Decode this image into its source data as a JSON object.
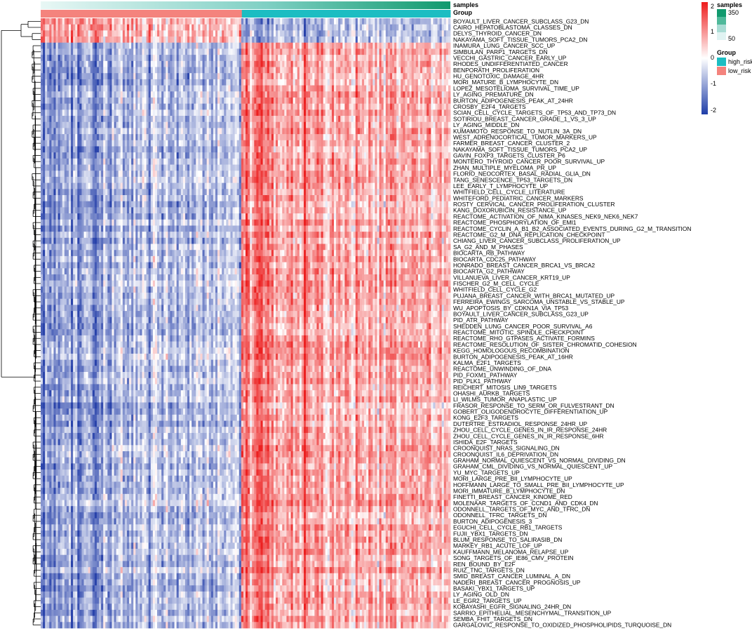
{
  "chart_data": {
    "type": "heatmap",
    "annotation_tracks": [
      "samples",
      "Group"
    ],
    "rows": [
      "BOYAULT_LIVER_CANCER_SUBCLASS_G23_DN",
      "CAIRO_HEPATOBLASTOMA_CLASSES_DN",
      "DELYS_THYROID_CANCER_DN",
      "NAKAYAMA_SOFT_TISSUE_TUMORS_PCA2_DN",
      "INAMURA_LUNG_CANCER_SCC_UP",
      "SIMBULAN_PARP1_TARGETS_DN",
      "VECCHI_GASTRIC_CANCER_EARLY_UP",
      "RHODES_UNDIFFERENTIATED_CANCER",
      "BENPORATH_PROLIFERATION",
      "HU_GENOTOXIC_DAMAGE_4HR",
      "MORI_MATURE_B_LYMPHOCYTE_DN",
      "LOPEZ_MESOTELIOMA_SURVIVAL_TIME_UP",
      "LY_AGING_PREMATURE_DN",
      "BURTON_ADIPOGENESIS_PEAK_AT_24HR",
      "CROSBY_E2F4_TARGETS",
      "SCIAN_CELL_CYCLE_TARGETS_OF_TP53_AND_TP73_DN",
      "SOTIRIOU_BREAST_CANCER_GRADE_1_VS_3_UP",
      "LY_AGING_MIDDLE_DN",
      "KUMAMOTO_RESPONSE_TO_NUTLIN_3A_DN",
      "WEST_ADRENOCORTICAL_TUMOR_MARKERS_UP",
      "FARMER_BREAST_CANCER_CLUSTER_2",
      "NAKAYAMA_SOFT_TISSUE_TUMORS_PCA2_UP",
      "GAVIN_FOXP3_TARGETS_CLUSTER_P6",
      "MONTERO_THYROID_CANCER_POOR_SURVIVAL_UP",
      "ZHAN_MULTIPLE_MYELOMA_PR_UP",
      "FLORIO_NEOCORTEX_BASAL_RADIAL_GLIA_DN",
      "TANG_SENESCENCE_TP53_TARGETS_DN",
      "LEE_EARLY_T_LYMPHOCYTE_UP",
      "WHITFIELD_CELL_CYCLE_LITERATURE",
      "WHITEFORD_PEDIATRIC_CANCER_MARKERS",
      "ROSTY_CERVICAL_CANCER_PROLIFERATION_CLUSTER",
      "KANG_DOXORUBICIN_RESISTANCE_UP",
      "REACTOME_ACTIVATION_OF_NIMA_KINASES_NEK9_NEK6_NEK7",
      "REACTOME_PHOSPHORYLATION_OF_EMI1",
      "REACTOME_CYCLIN_A_B1_B2_ASSOCIATED_EVENTS_DURING_G2_M_TRANSITION",
      "REACTOME_G2_M_DNA_REPLICATION_CHECKPOINT",
      "CHIANG_LIVER_CANCER_SUBCLASS_PROLIFERATION_UP",
      "SA_G2_AND_M_PHASES",
      "BIOCARTA_RB_PATHWAY",
      "BIOCARTA_CDC25_PATHWAY",
      "HONRADO_BREAST_CANCER_BRCA1_VS_BRCA2",
      "BIOCARTA_G2_PATHWAY",
      "VILLANUEVA_LIVER_CANCER_KRT19_UP",
      "FISCHER_G2_M_CELL_CYCLE",
      "WHITFIELD_CELL_CYCLE_G2",
      "PUJANA_BREAST_CANCER_WITH_BRCA1_MUTATED_UP",
      "FERREIRA_EWINGS_SARCOMA_UNSTABLE_VS_STABLE_UP",
      "WU_APOPTOSIS_BY_CDKN1A_VIA_TP53",
      "BOYAULT_LIVER_CANCER_SUBCLASS_G23_UP",
      "PID_ATR_PATHWAY",
      "SHEDDEN_LUNG_CANCER_POOR_SURVIVAL_A6",
      "REACTOME_MITOTIC_SPINDLE_CHECKPOINT",
      "REACTOME_RHO_GTPASES_ACTIVATE_FORMINS",
      "REACTOME_RESOLUTION_OF_SISTER_CHROMATID_COHESION",
      "KEGG_HOMOLOGOUS_RECOMBINATION",
      "BURTON_ADIPOGENESIS_PEAK_AT_16HR",
      "KALMA_E2F1_TARGETS",
      "REACTOME_UNWINDING_OF_DNA",
      "PID_FOXM1_PATHWAY",
      "PID_PLK1_PATHWAY",
      "REICHERT_MITOSIS_LIN9_TARGETS",
      "OHASHI_AURKB_TARGETS",
      "LI_WILMS_TUMOR_ANAPLASTIC_UP",
      "FRASOR_RESPONSE_TO_SERM_OR_FULVESTRANT_DN",
      "GOBERT_OLIGODENDROCYTE_DIFFERENTIATION_UP",
      "KONG_E2F3_TARGETS",
      "DUTERTRE_ESTRADIOL_RESPONSE_24HR_UP",
      "ZHOU_CELL_CYCLE_GENES_IN_IR_RESPONSE_24HR",
      "ZHOU_CELL_CYCLE_GENES_IN_IR_RESPONSE_6HR",
      "ISHIDA_E2F_TARGETS",
      "CROONQUIST_NRAS_SIGNALING_DN",
      "CROONQUIST_IL6_DEPRIVATION_DN",
      "GRAHAM_NORMAL_QUIESCENT_VS_NORMAL_DIVIDING_DN",
      "GRAHAM_CML_DIVIDING_VS_NORMAL_QUIESCENT_UP",
      "YU_MYC_TARGETS_UP",
      "MORI_LARGE_PRE_BII_LYMPHOCYTE_UP",
      "HOFFMANN_LARGE_TO_SMALL_PRE_BII_LYMPHOCYTE_UP",
      "MORI_IMMATURE_B_LYMPHOCYTE_DN",
      "FINETTI_BREAST_CANCER_KINOME_RED",
      "MOLENAAR_TARGETS_OF_CCND1_AND_CDK4_DN",
      "ODONNELL_TARGETS_OF_MYC_AND_TFRC_DN",
      "ODONNELL_TFRC_TARGETS_DN",
      "BURTON_ADIPOGENESIS_3",
      "EGUCHI_CELL_CYCLE_RB1_TARGETS",
      "FUJII_YBX1_TARGETS_DN",
      "BLUM_RESPONSE_TO_SALIRASIB_DN",
      "MARKEY_RB1_ACUTE_LOF_UP",
      "KAUFFMANN_MELANOMA_RELAPSE_UP",
      "SONG_TARGETS_OF_IE86_CMV_PROTEIN",
      "REN_BOUND_BY_E2F",
      "RUIZ_TNC_TARGETS_DN",
      "SMID_BREAST_CANCER_LUMINAL_A_DN",
      "NADERI_BREAST_CANCER_PROGNOSIS_UP",
      "BASAKI_YBX1_TARGETS_UP",
      "LY_AGING_OLD_DN",
      "LE_EGR2_TARGETS_UP",
      "KOBAYASHI_EGFR_SIGNALING_24HR_DN",
      "SARRIO_EPITHELIAL_MESENCHYMAL_TRANSITION_UP",
      "SEMBA_FHIT_TARGETS_DN",
      "GARGALOVIC_RESPONSE_TO_OXIDIZED_PHOSPHOLIPIDS_TURQUOISE_DN"
    ],
    "top_block_rows": 4,
    "sample_groups": [
      {
        "name": "low_risk",
        "fraction": 0.491,
        "color": "#f4837d"
      },
      {
        "name": "high_risk",
        "fraction": 0.509,
        "color": "#1cbdc2"
      }
    ],
    "samples_range": [
      1,
      370
    ],
    "color_scale": {
      "min": -2,
      "max": 2,
      "ticks": [
        "2",
        "1",
        "0",
        "-1",
        "-2"
      ],
      "low_color": "#2f4cb1",
      "mid_color": "#ffffff",
      "high_color": "#ee2a2a"
    }
  },
  "legend": {
    "samples_title": "samples",
    "samples_ticks": [
      "350",
      "50"
    ],
    "group_title": "Group",
    "group_items": [
      {
        "label": "high_risk",
        "color": "#1cbdc2"
      },
      {
        "label": "low_risk",
        "color": "#f4837d"
      }
    ]
  },
  "track_labels": {
    "samples": "samples",
    "group": "Group"
  }
}
